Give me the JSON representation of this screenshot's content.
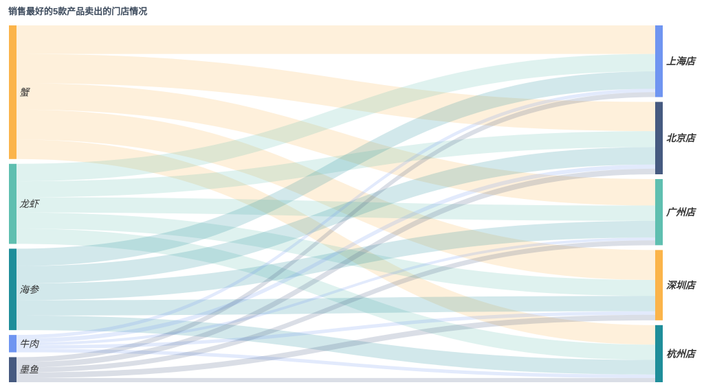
{
  "chart_data": {
    "type": "sankey",
    "title": "销售最好的5款产品卖出的门店情况",
    "sources": [
      {
        "name": "蟹",
        "color": "#fbb44a"
      },
      {
        "name": "龙虾",
        "color": "#5fbfb0"
      },
      {
        "name": "海参",
        "color": "#1f8e9a"
      },
      {
        "name": "牛肉",
        "color": "#6f95f1"
      },
      {
        "name": "墨鱼",
        "color": "#465a80"
      }
    ],
    "targets": [
      {
        "name": "上海店",
        "color": "#6f95f1"
      },
      {
        "name": "北京店",
        "color": "#465a80"
      },
      {
        "name": "广州店",
        "color": "#5fbfb0"
      },
      {
        "name": "深圳店",
        "color": "#fbb44a"
      },
      {
        "name": "杭州店",
        "color": "#1f8e9a"
      }
    ],
    "links": [
      {
        "source": "蟹",
        "target": "上海店",
        "value": 41
      },
      {
        "source": "蟹",
        "target": "北京店",
        "value": 42
      },
      {
        "source": "蟹",
        "target": "广州店",
        "value": 38
      },
      {
        "source": "蟹",
        "target": "深圳店",
        "value": 43
      },
      {
        "source": "蟹",
        "target": "杭州店",
        "value": 28
      },
      {
        "source": "龙虾",
        "target": "上海店",
        "value": 25
      },
      {
        "source": "龙虾",
        "target": "北京店",
        "value": 23
      },
      {
        "source": "龙虾",
        "target": "广州店",
        "value": 22
      },
      {
        "source": "龙虾",
        "target": "深圳店",
        "value": 23
      },
      {
        "source": "龙虾",
        "target": "杭州店",
        "value": 22
      },
      {
        "source": "海参",
        "target": "上海店",
        "value": 25
      },
      {
        "source": "海参",
        "target": "北京店",
        "value": 25
      },
      {
        "source": "海参",
        "target": "广州店",
        "value": 24
      },
      {
        "source": "海参",
        "target": "深圳店",
        "value": 22
      },
      {
        "source": "海参",
        "target": "杭州店",
        "value": 21
      },
      {
        "source": "牛肉",
        "target": "上海店",
        "value": 5
      },
      {
        "source": "牛肉",
        "target": "北京店",
        "value": 6
      },
      {
        "source": "牛肉",
        "target": "广州店",
        "value": 4
      },
      {
        "source": "牛肉",
        "target": "深圳店",
        "value": 5
      },
      {
        "source": "牛肉",
        "target": "杭州店",
        "value": 5
      },
      {
        "source": "墨鱼",
        "target": "上海店",
        "value": 7
      },
      {
        "source": "墨鱼",
        "target": "北京店",
        "value": 8
      },
      {
        "source": "墨鱼",
        "target": "广州店",
        "value": 7
      },
      {
        "source": "墨鱼",
        "target": "深圳店",
        "value": 8
      },
      {
        "source": "墨鱼",
        "target": "杭州店",
        "value": 6
      }
    ],
    "link_opacity": 0.2
  }
}
